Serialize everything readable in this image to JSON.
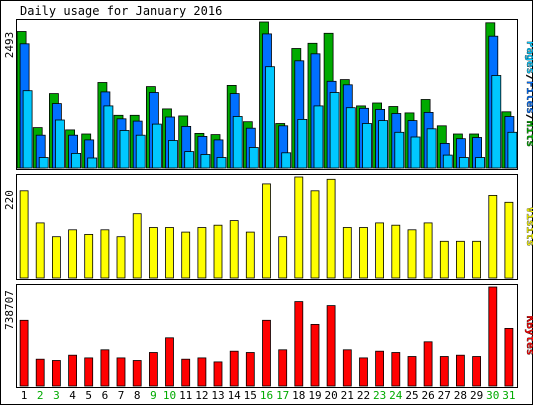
{
  "title": "Daily usage for January 2016",
  "colors": {
    "hits": "#00AA00",
    "files": "#0070FF",
    "pages": "#00C8FF",
    "visits": "#FFFF00",
    "kbytes": "#FF0000",
    "weekend_label": "#00AA00",
    "weekday_label": "#000000"
  },
  "chart_data": {
    "type": "bar",
    "days": [
      "1",
      "2",
      "3",
      "4",
      "5",
      "6",
      "7",
      "8",
      "9",
      "10",
      "11",
      "12",
      "13",
      "14",
      "15",
      "16",
      "17",
      "18",
      "19",
      "20",
      "21",
      "22",
      "23",
      "24",
      "25",
      "26",
      "27",
      "28",
      "29",
      "30",
      "31"
    ],
    "weekend_days": [
      "2",
      "3",
      "9",
      "10",
      "16",
      "17",
      "23",
      "24",
      "30",
      "31"
    ],
    "panels": [
      {
        "id": "usage",
        "ymax_label": "2493",
        "ymax": 2493,
        "ylabel_parts": [
          {
            "text": "Pages",
            "color": "#00C8FF"
          },
          {
            "text": "/",
            "color": "#000000"
          },
          {
            "text": "Files",
            "color": "#0070FF"
          },
          {
            "text": "/",
            "color": "#000000"
          },
          {
            "text": "Hits",
            "color": "#00AA00"
          }
        ],
        "series": [
          {
            "name": "Hits",
            "color": "#00AA00",
            "values": [
              2330,
              690,
              1270,
              650,
              580,
              1460,
              900,
              900,
              1390,
              1010,
              890,
              590,
              570,
              1410,
              790,
              2493,
              760,
              2040,
              2130,
              2300,
              1510,
              1060,
              1110,
              1050,
              940,
              1170,
              720,
              580,
              580,
              2480,
              960
            ]
          },
          {
            "name": "Files",
            "color": "#0070FF",
            "values": [
              2120,
              560,
              1100,
              560,
              480,
              1300,
              840,
              800,
              1290,
              870,
              710,
              540,
              480,
              1270,
              680,
              2290,
              720,
              1830,
              1950,
              1480,
              1420,
              1020,
              1000,
              930,
              810,
              950,
              420,
              500,
              520,
              2250,
              880
            ]
          },
          {
            "name": "Pages",
            "color": "#00C8FF",
            "values": [
              1320,
              180,
              820,
              250,
              170,
              1060,
              640,
              560,
              750,
              470,
              280,
              230,
              180,
              880,
              350,
              1730,
              260,
              830,
              1060,
              1290,
              1030,
              760,
              810,
              610,
              530,
              670,
              220,
              180,
              180,
              1580,
              610
            ]
          }
        ]
      },
      {
        "id": "visits",
        "ymax_label": "220",
        "ymax": 220,
        "ylabel_parts": [
          {
            "text": "Visits",
            "color": "#FFFF00"
          }
        ],
        "series": [
          {
            "name": "Visits",
            "color": "#FFFF00",
            "values": [
              190,
              120,
              90,
              105,
              95,
              105,
              90,
              140,
              110,
              110,
              100,
              110,
              115,
              125,
              100,
              205,
              90,
              220,
              190,
              215,
              110,
              110,
              120,
              115,
              105,
              120,
              80,
              80,
              80,
              180,
              165
            ]
          }
        ]
      },
      {
        "id": "kbytes",
        "ymax_label": "738707",
        "ymax": 738707,
        "ylabel_parts": [
          {
            "text": "KBytes",
            "color": "#FF0000"
          }
        ],
        "series": [
          {
            "name": "KBytes",
            "color": "#FF0000",
            "values": [
              490000,
              200000,
              190000,
              230000,
              210000,
              270000,
              210000,
              190000,
              250000,
              360000,
              200000,
              210000,
              180000,
              260000,
              250000,
              490000,
              270000,
              630000,
              460000,
              600000,
              270000,
              210000,
              260000,
              250000,
              220000,
              330000,
              220000,
              230000,
              220000,
              738707,
              430000
            ]
          }
        ]
      }
    ]
  }
}
